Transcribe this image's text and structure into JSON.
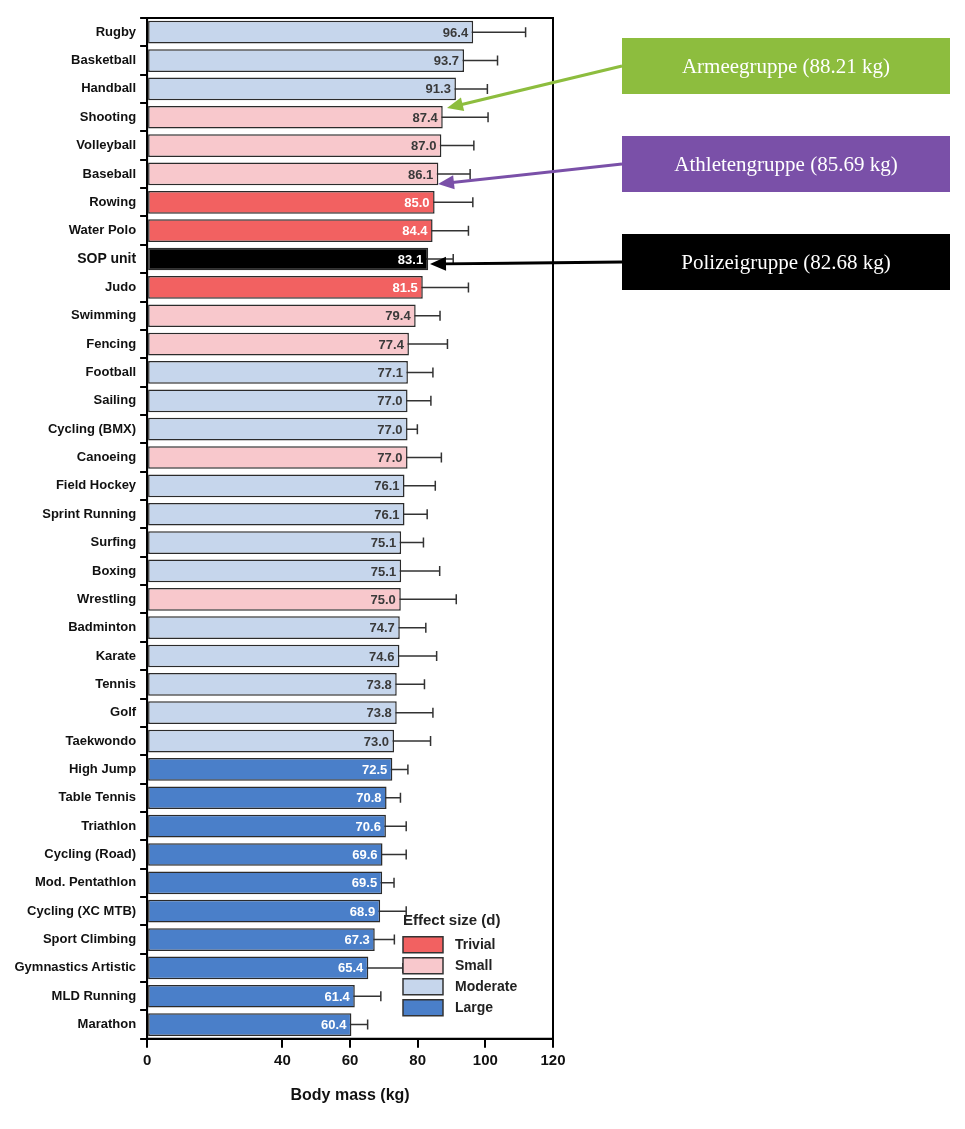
{
  "chart_data": {
    "type": "bar",
    "orientation": "horizontal",
    "stacked": true,
    "xlabel": "Body mass (kg)",
    "legend_title": "Effect size (d)",
    "legend": "bottom right",
    "categories": [
      "Rugby",
      "Basketball",
      "Handball",
      "Shooting",
      "Volleyball",
      "Baseball",
      "Rowing",
      "Water Polo",
      "SOP unit",
      "Judo",
      "Swimming",
      "Fencing",
      "Football",
      "Sailing",
      "Cycling (BMX)",
      "Canoeing",
      "Field Hockey",
      "Sprint Running",
      "Surfing",
      "Boxing",
      "Wrestling",
      "Badminton",
      "Karate",
      "Tennis",
      "Golf",
      "Taekwondo",
      "High Jump",
      "Table Tennis",
      "Triathlon",
      "Cycling (Road)",
      "Mod. Pentathlon",
      "Cycling (XC MTB)",
      "Sport Climbing",
      "Gymnastics Artistic",
      "MLD Running",
      "Marathon"
    ],
    "xlim": [
      0,
      120
    ],
    "xticks": [
      0,
      40,
      60,
      80,
      100,
      120
    ],
    "series": [
      {
        "name": "Trivial",
        "color": "#f26161",
        "values": [
          null,
          null,
          null,
          null,
          null,
          null,
          85.0,
          84.4,
          null,
          81.5,
          null,
          null,
          null,
          null,
          null,
          null,
          null,
          null,
          null,
          null,
          null,
          null,
          null,
          null,
          null,
          null,
          null,
          null,
          null,
          null,
          null,
          null,
          null,
          null,
          null,
          null
        ],
        "value_labels": [
          null,
          null,
          null,
          null,
          null,
          null,
          "85.0",
          "84.4",
          null,
          "81.5",
          null,
          null,
          null,
          null,
          null,
          null,
          null,
          null,
          null,
          null,
          null,
          null,
          null,
          null,
          null,
          null,
          null,
          null,
          null,
          null,
          null,
          null,
          null,
          null,
          null,
          null
        ],
        "errors": [
          null,
          null,
          null,
          null,
          null,
          null,
          11.3,
          10.6,
          null,
          13.5,
          null,
          null,
          null,
          null,
          null,
          null,
          null,
          null,
          null,
          null,
          null,
          null,
          null,
          null,
          null,
          null,
          null,
          null,
          null,
          null,
          null,
          null,
          null,
          null,
          null,
          null
        ]
      },
      {
        "name": "Small",
        "color": "#f8c8cc",
        "values": [
          null,
          null,
          null,
          87.4,
          87.0,
          86.1,
          null,
          null,
          null,
          null,
          79.4,
          77.4,
          null,
          null,
          null,
          77.0,
          null,
          null,
          null,
          null,
          75.0,
          null,
          null,
          null,
          null,
          null,
          null,
          null,
          null,
          null,
          null,
          null,
          null,
          null,
          null,
          null
        ],
        "value_labels": [
          null,
          null,
          null,
          "87.4",
          "87.0",
          "86.1",
          null,
          null,
          null,
          null,
          "79.4",
          "77.4",
          null,
          null,
          null,
          "77.0",
          null,
          null,
          null,
          null,
          "75.0",
          null,
          null,
          null,
          null,
          null,
          null,
          null,
          null,
          null,
          null,
          null,
          null,
          null,
          null,
          null
        ],
        "errors": [
          null,
          null,
          null,
          13.4,
          9.6,
          9.4,
          null,
          null,
          null,
          null,
          7.2,
          11.4,
          null,
          null,
          null,
          10.0,
          null,
          null,
          null,
          null,
          16.4,
          null,
          null,
          null,
          null,
          null,
          null,
          null,
          null,
          null,
          null,
          null,
          null,
          null,
          null,
          null
        ]
      },
      {
        "name": "Moderate",
        "color": "#c6d6ec",
        "values": [
          96.4,
          93.7,
          91.3,
          null,
          null,
          null,
          null,
          null,
          null,
          null,
          null,
          null,
          77.1,
          77.0,
          77.0,
          null,
          76.1,
          76.1,
          75.1,
          75.1,
          null,
          74.7,
          74.6,
          73.8,
          73.8,
          73.0,
          null,
          null,
          null,
          null,
          null,
          null,
          null,
          null,
          null,
          null
        ],
        "value_labels": [
          "96.4",
          "93.7",
          "91.3",
          null,
          null,
          null,
          null,
          null,
          null,
          null,
          null,
          null,
          "77.1",
          "77.0",
          "77.0",
          null,
          "76.1",
          "76.1",
          "75.1",
          "75.1",
          null,
          "74.7",
          "74.6",
          "73.8",
          "73.8",
          "73.0",
          null,
          null,
          null,
          null,
          null,
          null,
          null,
          null,
          null,
          null
        ],
        "errors": [
          15.5,
          9.9,
          9.3,
          null,
          null,
          null,
          null,
          null,
          null,
          null,
          null,
          null,
          7.4,
          6.9,
          2.9,
          null,
          9.1,
          6.7,
          6.6,
          11.4,
          null,
          7.7,
          11.0,
          8.2,
          10.7,
          10.8,
          null,
          null,
          null,
          null,
          null,
          null,
          null,
          null,
          null,
          null
        ]
      },
      {
        "name": "Large",
        "color": "#4a7fc9",
        "values": [
          null,
          null,
          null,
          null,
          null,
          null,
          null,
          null,
          null,
          null,
          null,
          null,
          null,
          null,
          null,
          null,
          null,
          null,
          null,
          null,
          null,
          null,
          null,
          null,
          null,
          null,
          72.5,
          70.8,
          70.6,
          69.6,
          69.5,
          68.9,
          67.3,
          65.4,
          61.4,
          60.4
        ],
        "value_labels": [
          null,
          null,
          null,
          null,
          null,
          null,
          null,
          null,
          null,
          null,
          null,
          null,
          null,
          null,
          null,
          null,
          null,
          null,
          null,
          null,
          null,
          null,
          null,
          null,
          null,
          null,
          "72.5",
          "70.8",
          "70.6",
          "69.6",
          "69.5",
          "68.9",
          "67.3",
          "65.4",
          "61.4",
          "60.4"
        ],
        "errors": [
          null,
          null,
          null,
          null,
          null,
          null,
          null,
          null,
          null,
          null,
          null,
          null,
          null,
          null,
          null,
          null,
          null,
          null,
          null,
          null,
          null,
          null,
          null,
          null,
          null,
          null,
          4.6,
          4.1,
          6.0,
          7.0,
          3.5,
          7.7,
          5.8,
          10.2,
          7.7,
          4.8
        ]
      },
      {
        "color": "#000000",
        "value_labels": [
          null,
          null,
          null,
          null,
          null,
          null,
          null,
          null,
          "83.1",
          null,
          null,
          null,
          null,
          null,
          null,
          null,
          null,
          null,
          null,
          null,
          null,
          null,
          null,
          null,
          null,
          null,
          null,
          null,
          null,
          null,
          null,
          null,
          null,
          null,
          null,
          null
        ],
        "values": [
          null,
          null,
          null,
          null,
          null,
          null,
          null,
          null,
          83.1,
          null,
          null,
          null,
          null,
          null,
          null,
          null,
          null,
          null,
          null,
          null,
          null,
          null,
          null,
          null,
          null,
          null,
          null,
          null,
          null,
          null,
          null,
          null,
          null,
          null,
          null,
          null
        ],
        "errors": [
          null,
          null,
          null,
          null,
          null,
          null,
          null,
          null,
          7.4,
          null,
          null,
          null,
          null,
          null,
          null,
          null,
          null,
          null,
          null,
          null,
          null,
          null,
          null,
          null,
          null,
          null,
          null,
          null,
          null,
          null,
          null,
          null,
          null,
          null,
          null,
          null
        ]
      }
    ],
    "annotations": [
      "Armeegruppe (88.21 kg)",
      "Athletengruppe (85.69 kg)",
      "Polizeigruppe (82.68 kg)"
    ]
  }
}
